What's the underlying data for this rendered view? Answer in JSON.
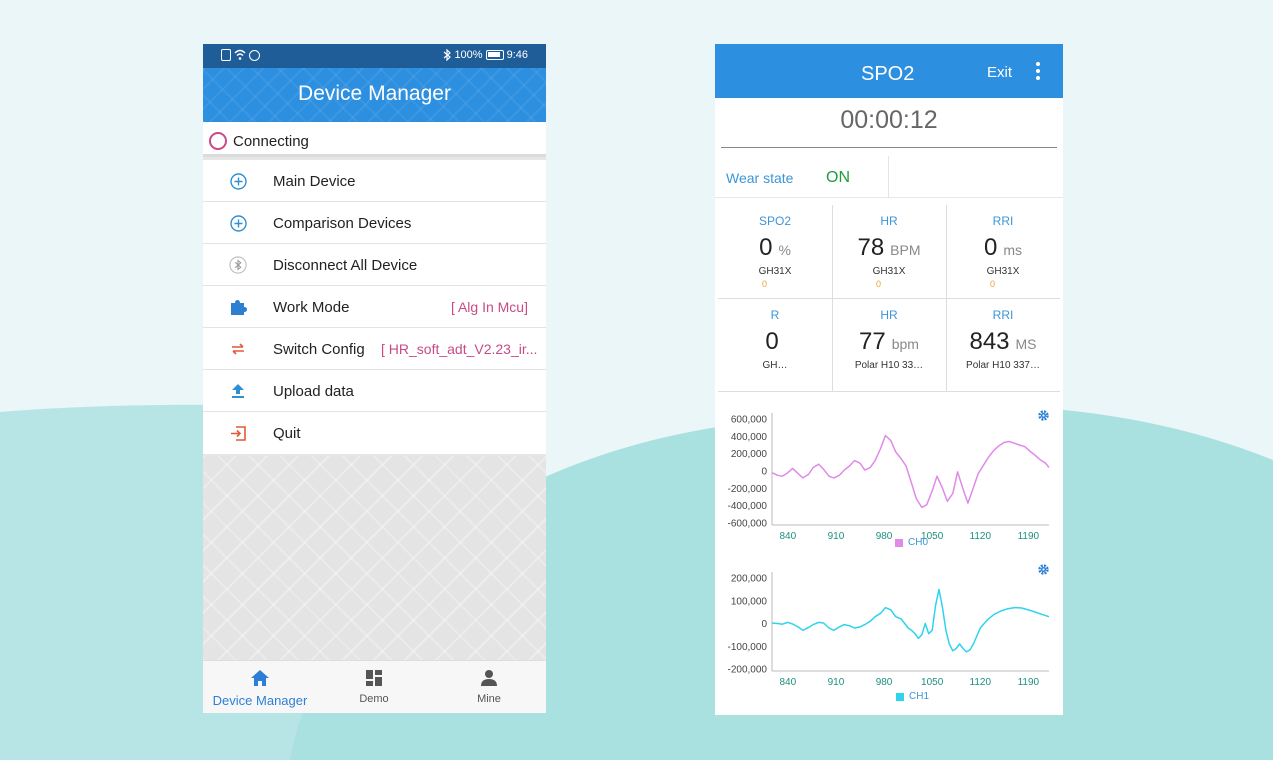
{
  "left_phone": {
    "statusbar": {
      "battery": "100%",
      "time": "9:46"
    },
    "header_title": "Device Manager",
    "connection_status": "Connecting",
    "menu": [
      {
        "label": "Main Device",
        "icon": "plus-circle-icon",
        "value": ""
      },
      {
        "label": "Comparison Devices",
        "icon": "plus-circle-icon",
        "value": ""
      },
      {
        "label": "Disconnect All Device",
        "icon": "bluetooth-icon",
        "value": ""
      },
      {
        "label": "Work Mode",
        "icon": "puzzle-icon",
        "value": "[ Alg In Mcu]"
      },
      {
        "label": "Switch Config",
        "icon": "swap-arrows-icon",
        "value": "[ HR_soft_adt_V2.23_ir..."
      },
      {
        "label": "Upload data",
        "icon": "upload-icon",
        "value": ""
      },
      {
        "label": "Quit",
        "icon": "exit-icon",
        "value": ""
      }
    ],
    "nav": [
      {
        "label": "Device Manager",
        "icon": "home-icon",
        "active": true
      },
      {
        "label": "Demo",
        "icon": "grid-icon",
        "active": false
      },
      {
        "label": "Mine",
        "icon": "person-icon",
        "active": false
      }
    ],
    "colors": {
      "header": "#2d8fe0",
      "statusbar": "#1f5d99",
      "accent": "#c94a86",
      "active_nav": "#2d7fd6"
    }
  },
  "right_phone": {
    "header_title": "SPO2",
    "exit_label": "Exit",
    "timer": "00:00:12",
    "wear_label": "Wear state",
    "wear_value": "ON",
    "metrics": [
      {
        "header": "SPO2",
        "value": "0",
        "unit": "%",
        "source": "GH31X",
        "sub": "0"
      },
      {
        "header": "HR",
        "value": "78",
        "unit": "BPM",
        "source": "GH31X",
        "sub": "0"
      },
      {
        "header": "RRI",
        "value": "0",
        "unit": "ms",
        "source": "GH31X",
        "sub": "0"
      },
      {
        "header": "R",
        "value": "0",
        "unit": "",
        "source": "GH…",
        "sub": ""
      },
      {
        "header": "HR",
        "value": "77",
        "unit": "bpm",
        "source": "Polar H10 33…",
        "sub": ""
      },
      {
        "header": "RRI",
        "value": "843",
        "unit": "MS",
        "source": "Polar H10 337…",
        "sub": ""
      }
    ],
    "chart_data": [
      {
        "type": "line",
        "x_ticks": [
          "840",
          "910",
          "980",
          "1050",
          "1120",
          "1190"
        ],
        "y_ticks": [
          "600,000",
          "400,000",
          "200,000",
          "0",
          "-200,000",
          "-400,000",
          "-600,000"
        ],
        "xlim": [
          817,
          1220
        ],
        "ylim": [
          -600000,
          600000
        ],
        "series": [
          {
            "name": "CH0",
            "color": "#e08ae8",
            "x": [
              817,
              825,
              832,
              840,
              847,
              855,
              862,
              870,
              877,
              885,
              892,
              900,
              907,
              915,
              922,
              930,
              937,
              945,
              952,
              960,
              967,
              975,
              982,
              990,
              997,
              1005,
              1012,
              1020,
              1027,
              1035,
              1042,
              1050,
              1057,
              1065,
              1072,
              1080,
              1087,
              1095,
              1102,
              1110,
              1117,
              1125,
              1132,
              1140,
              1147,
              1155,
              1162,
              1170,
              1177,
              1185,
              1192,
              1200,
              1207,
              1215,
              1220
            ],
            "y": [
              -20000,
              -50000,
              -60000,
              -20000,
              30000,
              -30000,
              -80000,
              -40000,
              40000,
              80000,
              20000,
              -60000,
              -80000,
              -50000,
              10000,
              60000,
              120000,
              90000,
              10000,
              40000,
              120000,
              260000,
              410000,
              350000,
              220000,
              140000,
              60000,
              -140000,
              -320000,
              -420000,
              -390000,
              -230000,
              -60000,
              -200000,
              -350000,
              -260000,
              -10000,
              -210000,
              -370000,
              -190000,
              -30000,
              70000,
              160000,
              240000,
              290000,
              330000,
              340000,
              320000,
              300000,
              280000,
              230000,
              180000,
              130000,
              90000,
              40000
            ]
          }
        ]
      },
      {
        "type": "line",
        "x_ticks": [
          "840",
          "910",
          "980",
          "1050",
          "1120",
          "1190"
        ],
        "y_ticks": [
          "200,000",
          "100,000",
          "0",
          "-100,000",
          "-200,000"
        ],
        "xlim": [
          817,
          1220
        ],
        "ylim": [
          -200000,
          200000
        ],
        "series": [
          {
            "name": "CH1",
            "color": "#2fd3ec",
            "x": [
              817,
              825,
              832,
              840,
              847,
              855,
              862,
              870,
              877,
              885,
              892,
              900,
              907,
              915,
              922,
              930,
              937,
              945,
              952,
              960,
              967,
              975,
              982,
              990,
              997,
              1005,
              1010,
              1015,
              1020,
              1025,
              1030,
              1035,
              1040,
              1045,
              1050,
              1055,
              1060,
              1065,
              1070,
              1075,
              1080,
              1085,
              1090,
              1095,
              1100,
              1105,
              1110,
              1115,
              1120,
              1130,
              1140,
              1150,
              1160,
              1170,
              1180,
              1190,
              1200,
              1210,
              1220
            ],
            "y": [
              2000,
              0,
              -3000,
              5000,
              -2000,
              -15000,
              -30000,
              -18000,
              -5000,
              5000,
              2000,
              -20000,
              -30000,
              -15000,
              -5000,
              -10000,
              -20000,
              -15000,
              -5000,
              10000,
              30000,
              45000,
              70000,
              60000,
              30000,
              20000,
              0,
              -20000,
              -30000,
              -45000,
              -65000,
              -50000,
              0,
              -45000,
              -30000,
              80000,
              150000,
              70000,
              -30000,
              -90000,
              -120000,
              -110000,
              -90000,
              -110000,
              -125000,
              -115000,
              -90000,
              -55000,
              -20000,
              15000,
              40000,
              55000,
              65000,
              70000,
              68000,
              60000,
              50000,
              40000,
              30000
            ]
          }
        ]
      }
    ],
    "colors": {
      "header": "#2d8fe0",
      "label_blue": "#3c96d6",
      "wear_on": "#1e9c3c",
      "sub_orange": "#f0a030"
    }
  }
}
